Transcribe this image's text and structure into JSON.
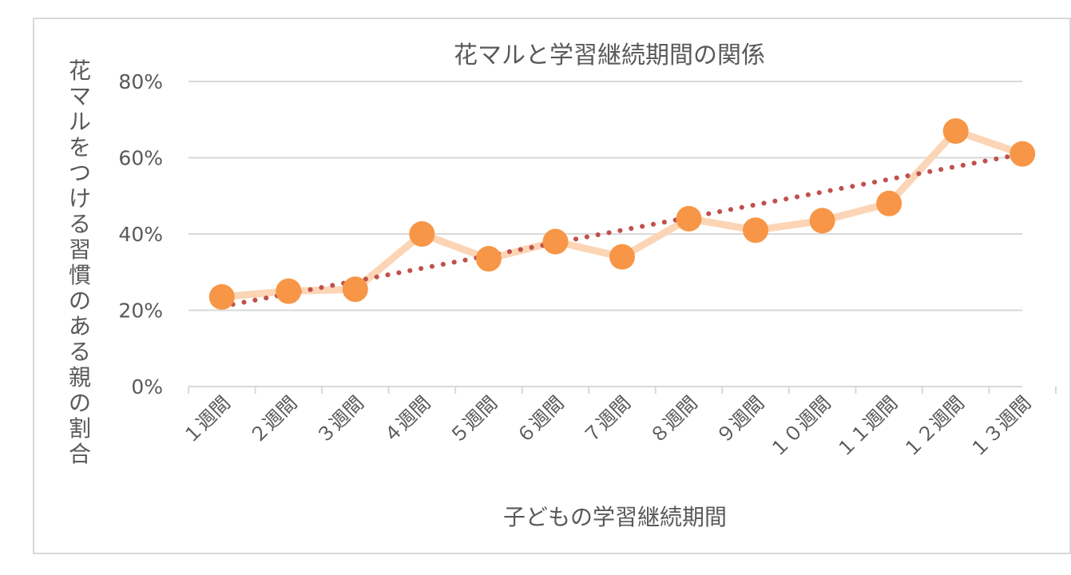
{
  "chart_data": {
    "type": "line",
    "title": "花マルと学習継続期間の関係",
    "xlabel": "子どもの学習継続期間",
    "ylabel": "花マルをつける習慣のある親の割合",
    "categories": [
      "１週間",
      "２週間",
      "３週間",
      "４週間",
      "５週間",
      "６週間",
      "７週間",
      "８週間",
      "９週間",
      "１０週間",
      "１１週間",
      "１２週間",
      "１３週間"
    ],
    "series": [
      {
        "values": [
          0.235,
          0.25,
          0.255,
          0.4,
          0.335,
          0.38,
          0.34,
          0.44,
          0.41,
          0.435,
          0.48,
          0.67,
          0.61
        ],
        "line_color": "#fbd5b5",
        "marker_color": "#f79646"
      }
    ],
    "trendline": {
      "type": "linear",
      "start": 0.21,
      "end": 0.61,
      "color": "#c0504d",
      "style": "dotted"
    },
    "ylim": [
      0,
      0.8
    ],
    "y_ticks": [
      0,
      0.2,
      0.4,
      0.6,
      0.8
    ],
    "y_tick_labels": [
      "0%",
      "20%",
      "40%",
      "60%",
      "80%"
    ],
    "grid": true,
    "legend": "none",
    "colors": {
      "grid": "#d9d9d9",
      "text": "#595959",
      "border": "#d9d9d9"
    }
  }
}
